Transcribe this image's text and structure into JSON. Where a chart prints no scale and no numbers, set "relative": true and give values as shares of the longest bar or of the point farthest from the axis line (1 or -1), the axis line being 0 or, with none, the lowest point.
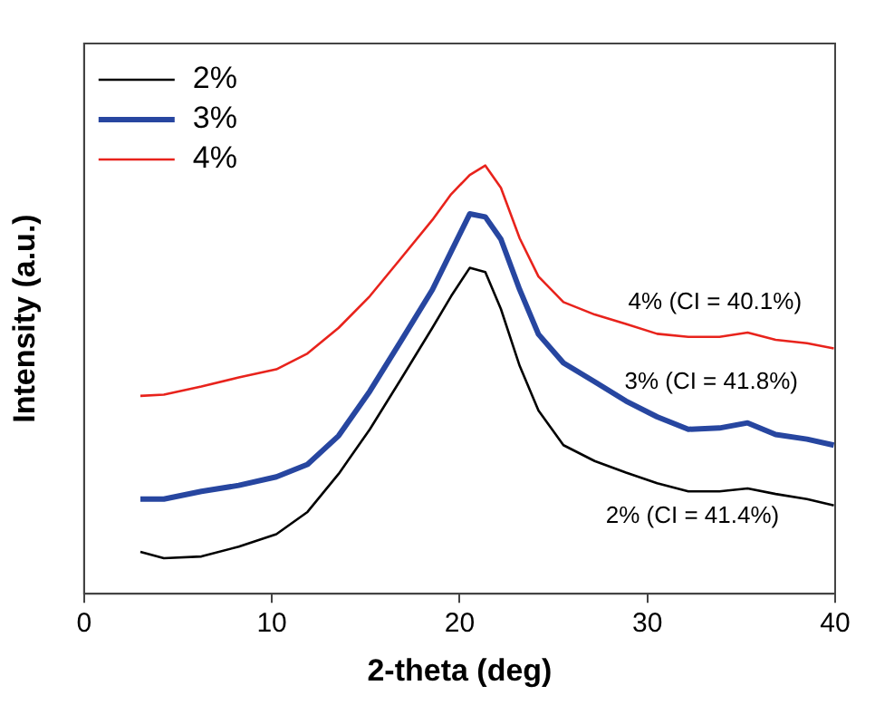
{
  "chart_data": {
    "type": "line",
    "xlabel": "2-theta (deg)",
    "ylabel": "Intensity (a.u.)",
    "relative": true,
    "x": [
      3.0,
      4.25,
      6.25,
      8.24,
      10.24,
      11.9,
      13.56,
      15.22,
      16.89,
      18.55,
      19.55,
      20.54,
      21.37,
      22.2,
      23.2,
      24.2,
      25.53,
      27.19,
      28.86,
      30.52,
      32.18,
      33.84,
      35.34,
      36.83,
      38.5,
      39.93
    ],
    "xlim": [
      0,
      40
    ],
    "xticks": [
      0,
      10,
      20,
      30,
      40
    ],
    "series": [
      {
        "name": "2%",
        "color": "#000000",
        "values": [
          0.098,
          0.083,
          0.087,
          0.11,
          0.139,
          0.191,
          0.28,
          0.384,
          0.502,
          0.621,
          0.695,
          0.761,
          0.751,
          0.665,
          0.532,
          0.428,
          0.347,
          0.31,
          0.283,
          0.258,
          0.239,
          0.239,
          0.246,
          0.233,
          0.221,
          0.206
        ]
      },
      {
        "name": "3%",
        "color": "#2746a0",
        "values": [
          0.221,
          0.221,
          0.239,
          0.253,
          0.273,
          0.302,
          0.369,
          0.473,
          0.591,
          0.71,
          0.799,
          0.887,
          0.88,
          0.828,
          0.71,
          0.606,
          0.539,
          0.495,
          0.45,
          0.413,
          0.384,
          0.387,
          0.399,
          0.372,
          0.361,
          0.347
        ]
      },
      {
        "name": "4%",
        "color": "#e8231c",
        "values": [
          0.462,
          0.465,
          0.484,
          0.505,
          0.524,
          0.561,
          0.621,
          0.695,
          0.784,
          0.873,
          0.933,
          0.978,
          1.0,
          0.948,
          0.83,
          0.741,
          0.681,
          0.652,
          0.63,
          0.607,
          0.6,
          0.6,
          0.61,
          0.593,
          0.585,
          0.573
        ]
      }
    ],
    "annotations": [
      "4% (CI = 40.1%)",
      "3% (CI = 41.8%)",
      "2% (CI = 41.4%)"
    ],
    "grid": false,
    "legend": "top left",
    "marker": "none",
    "line_style": "solid"
  }
}
